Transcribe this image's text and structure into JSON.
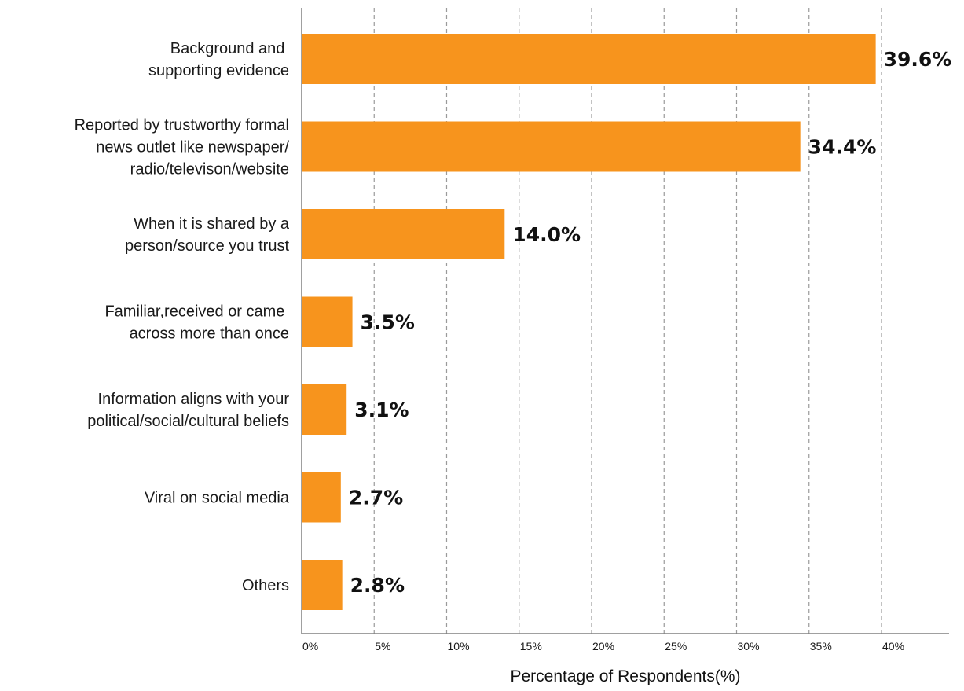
{
  "chart_data": {
    "type": "bar",
    "orientation": "horizontal",
    "categories": [
      [
        "Background and ",
        "supporting evidence"
      ],
      [
        "Reported by trustworthy formal",
        "news outlet like newspaper/",
        "radio/televison/website"
      ],
      [
        "When it is shared by a",
        "person/source you trust"
      ],
      [
        "Familiar,received or came ",
        "across more than once"
      ],
      [
        "Information aligns with your",
        "political/social/cultural beliefs"
      ],
      [
        "Viral on social media"
      ],
      [
        "Others"
      ]
    ],
    "values": [
      39.6,
      34.4,
      14.0,
      3.5,
      3.1,
      2.7,
      2.8
    ],
    "value_labels": [
      "39.6%",
      "34.4%",
      "14.0%",
      "3.5%",
      "3.1%",
      "2.7%",
      "2.8%"
    ],
    "title": "",
    "xlabel": "Percentage of Respondents(%)",
    "ylabel": "",
    "xlim": [
      0,
      44
    ],
    "xticks": [
      0,
      5,
      10,
      15,
      20,
      25,
      30,
      35,
      40
    ],
    "xtick_labels": [
      "0%",
      "5%",
      "10%",
      "15%",
      "20%",
      "25%",
      "30%",
      "35%",
      "40%"
    ],
    "grid": "vertical dashed",
    "bar_color": "#f7941d"
  }
}
